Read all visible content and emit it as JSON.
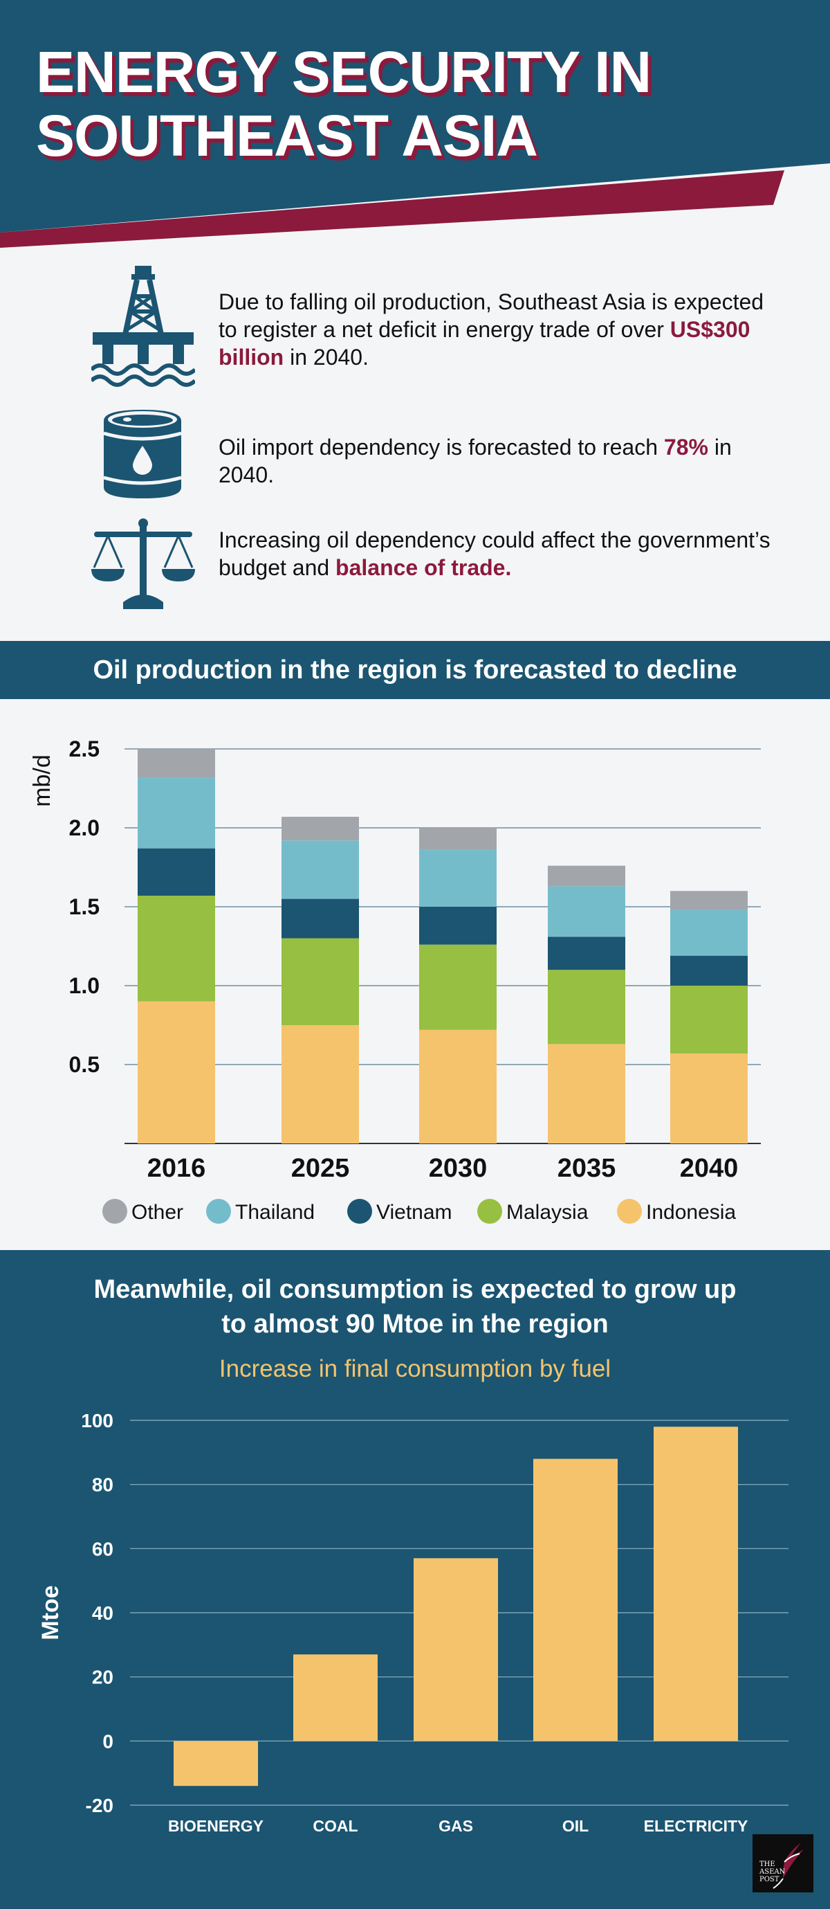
{
  "header": {
    "title_line1": "ENERGY SECURITY IN",
    "title_line2": "SOUTHEAST ASIA",
    "bg_color": "#1b5571",
    "accent_color": "#8b1a3c"
  },
  "facts": [
    {
      "icon": "oil-rig-icon",
      "text_before": "Due to falling oil production, Southeast Asia is expected to register a net deficit in energy trade of over ",
      "highlight": "US$300 billion",
      "text_after": " in 2040."
    },
    {
      "icon": "oil-barrel-icon",
      "text_before": "Oil import dependency is forecasted to reach ",
      "highlight": "78%",
      "text_after": " in 2040."
    },
    {
      "icon": "balance-scale-icon",
      "text_before": "Increasing oil dependency could affect the government’s budget and ",
      "highlight": "balance of trade.",
      "text_after": ""
    }
  ],
  "production_heading": "Oil production in the region is forecasted to decline",
  "consumption_heading_line1": "Meanwhile, oil consumption is expected to grow up",
  "consumption_heading_line2": "to almost 90 Mtoe in the region",
  "consumption_subheading": "Increase in final consumption by fuel",
  "logo": {
    "text": "THE ASEAN POST"
  },
  "chart_data": [
    {
      "type": "bar",
      "stacked": true,
      "categories": [
        "2016",
        "2025",
        "2030",
        "2035",
        "2040"
      ],
      "series": [
        {
          "name": "Indonesia",
          "color": "#f5c36c",
          "values": [
            0.9,
            0.75,
            0.72,
            0.63,
            0.57
          ]
        },
        {
          "name": "Malaysia",
          "color": "#97bf41",
          "values": [
            0.67,
            0.55,
            0.54,
            0.47,
            0.43
          ]
        },
        {
          "name": "Vietnam",
          "color": "#1b5571",
          "values": [
            0.3,
            0.25,
            0.24,
            0.21,
            0.19
          ]
        },
        {
          "name": "Thailand",
          "color": "#75bccb",
          "values": [
            0.45,
            0.37,
            0.36,
            0.32,
            0.29
          ]
        },
        {
          "name": "Other",
          "color": "#a2a6ab",
          "values": [
            0.18,
            0.15,
            0.14,
            0.13,
            0.12
          ]
        }
      ],
      "legend_order": [
        "Other",
        "Thailand",
        "Vietnam",
        "Malaysia",
        "Indonesia"
      ],
      "ylabel": "mb/d",
      "ylim": [
        0,
        2.5
      ],
      "yticks": [
        0.5,
        1.0,
        1.5,
        2.0,
        2.5
      ],
      "ytick_labels": [
        "0.5",
        "1.0",
        "1.5",
        "2.0",
        "2.5"
      ],
      "grid": true,
      "legend_position": "bottom"
    },
    {
      "type": "bar",
      "categories": [
        "BIOENERGY",
        "COAL",
        "GAS",
        "OIL",
        "ELECTRICITY"
      ],
      "values": [
        -14,
        27,
        57,
        88,
        98
      ],
      "color": "#f5c36c",
      "ylabel": "Mtoe",
      "ylim": [
        -20,
        100
      ],
      "yticks": [
        -20,
        0,
        20,
        40,
        60,
        80,
        100
      ],
      "grid": true
    }
  ]
}
